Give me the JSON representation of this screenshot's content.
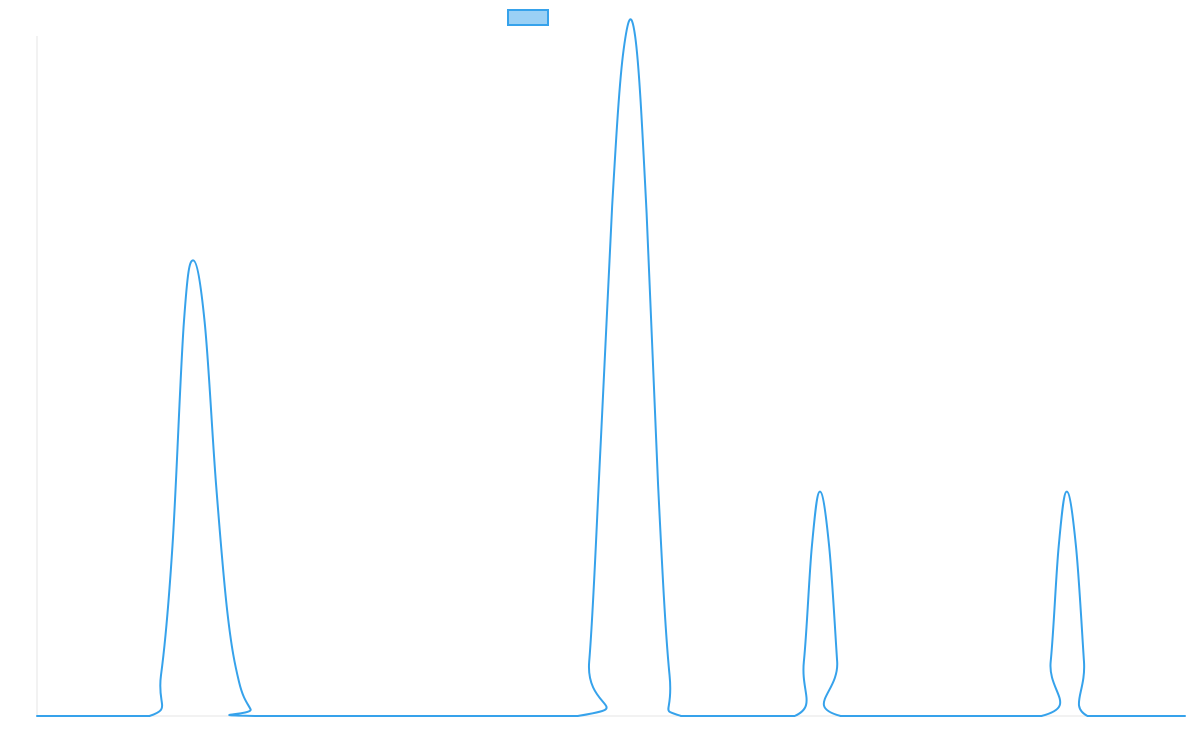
{
  "chart_data": {
    "type": "line",
    "title": "",
    "xlabel": "",
    "ylabel": "",
    "xlim": [
      0,
      100
    ],
    "ylim": [
      0,
      100
    ],
    "grid": false,
    "legend_position": "top-center",
    "series": [
      {
        "name": "",
        "color": "#36a2eb",
        "fill_color": "#9ad0f5",
        "x": [
          0,
          9.8,
          10.8,
          11.8,
          12.8,
          13.6,
          14.6,
          15.6,
          16.6,
          17.6,
          18.6,
          19.1,
          47.1,
          48.1,
          49.1,
          50.1,
          51.1,
          52.1,
          53.1,
          54.1,
          55.1,
          56.1,
          66.0,
          66.8,
          67.5,
          68.2,
          69.0,
          69.7,
          70.0,
          87.5,
          88.3,
          89.0,
          89.7,
          90.5,
          91.2,
          91.5,
          100
        ],
        "y": [
          0,
          0,
          6,
          25,
          58,
          67,
          58,
          34,
          15,
          5,
          1,
          0,
          0,
          8,
          40,
          75,
          98,
          100,
          74,
          34,
          6,
          0,
          0,
          8,
          25,
          33,
          25,
          8,
          0,
          0,
          8,
          25,
          33,
          25,
          8,
          0,
          0
        ]
      }
    ]
  }
}
